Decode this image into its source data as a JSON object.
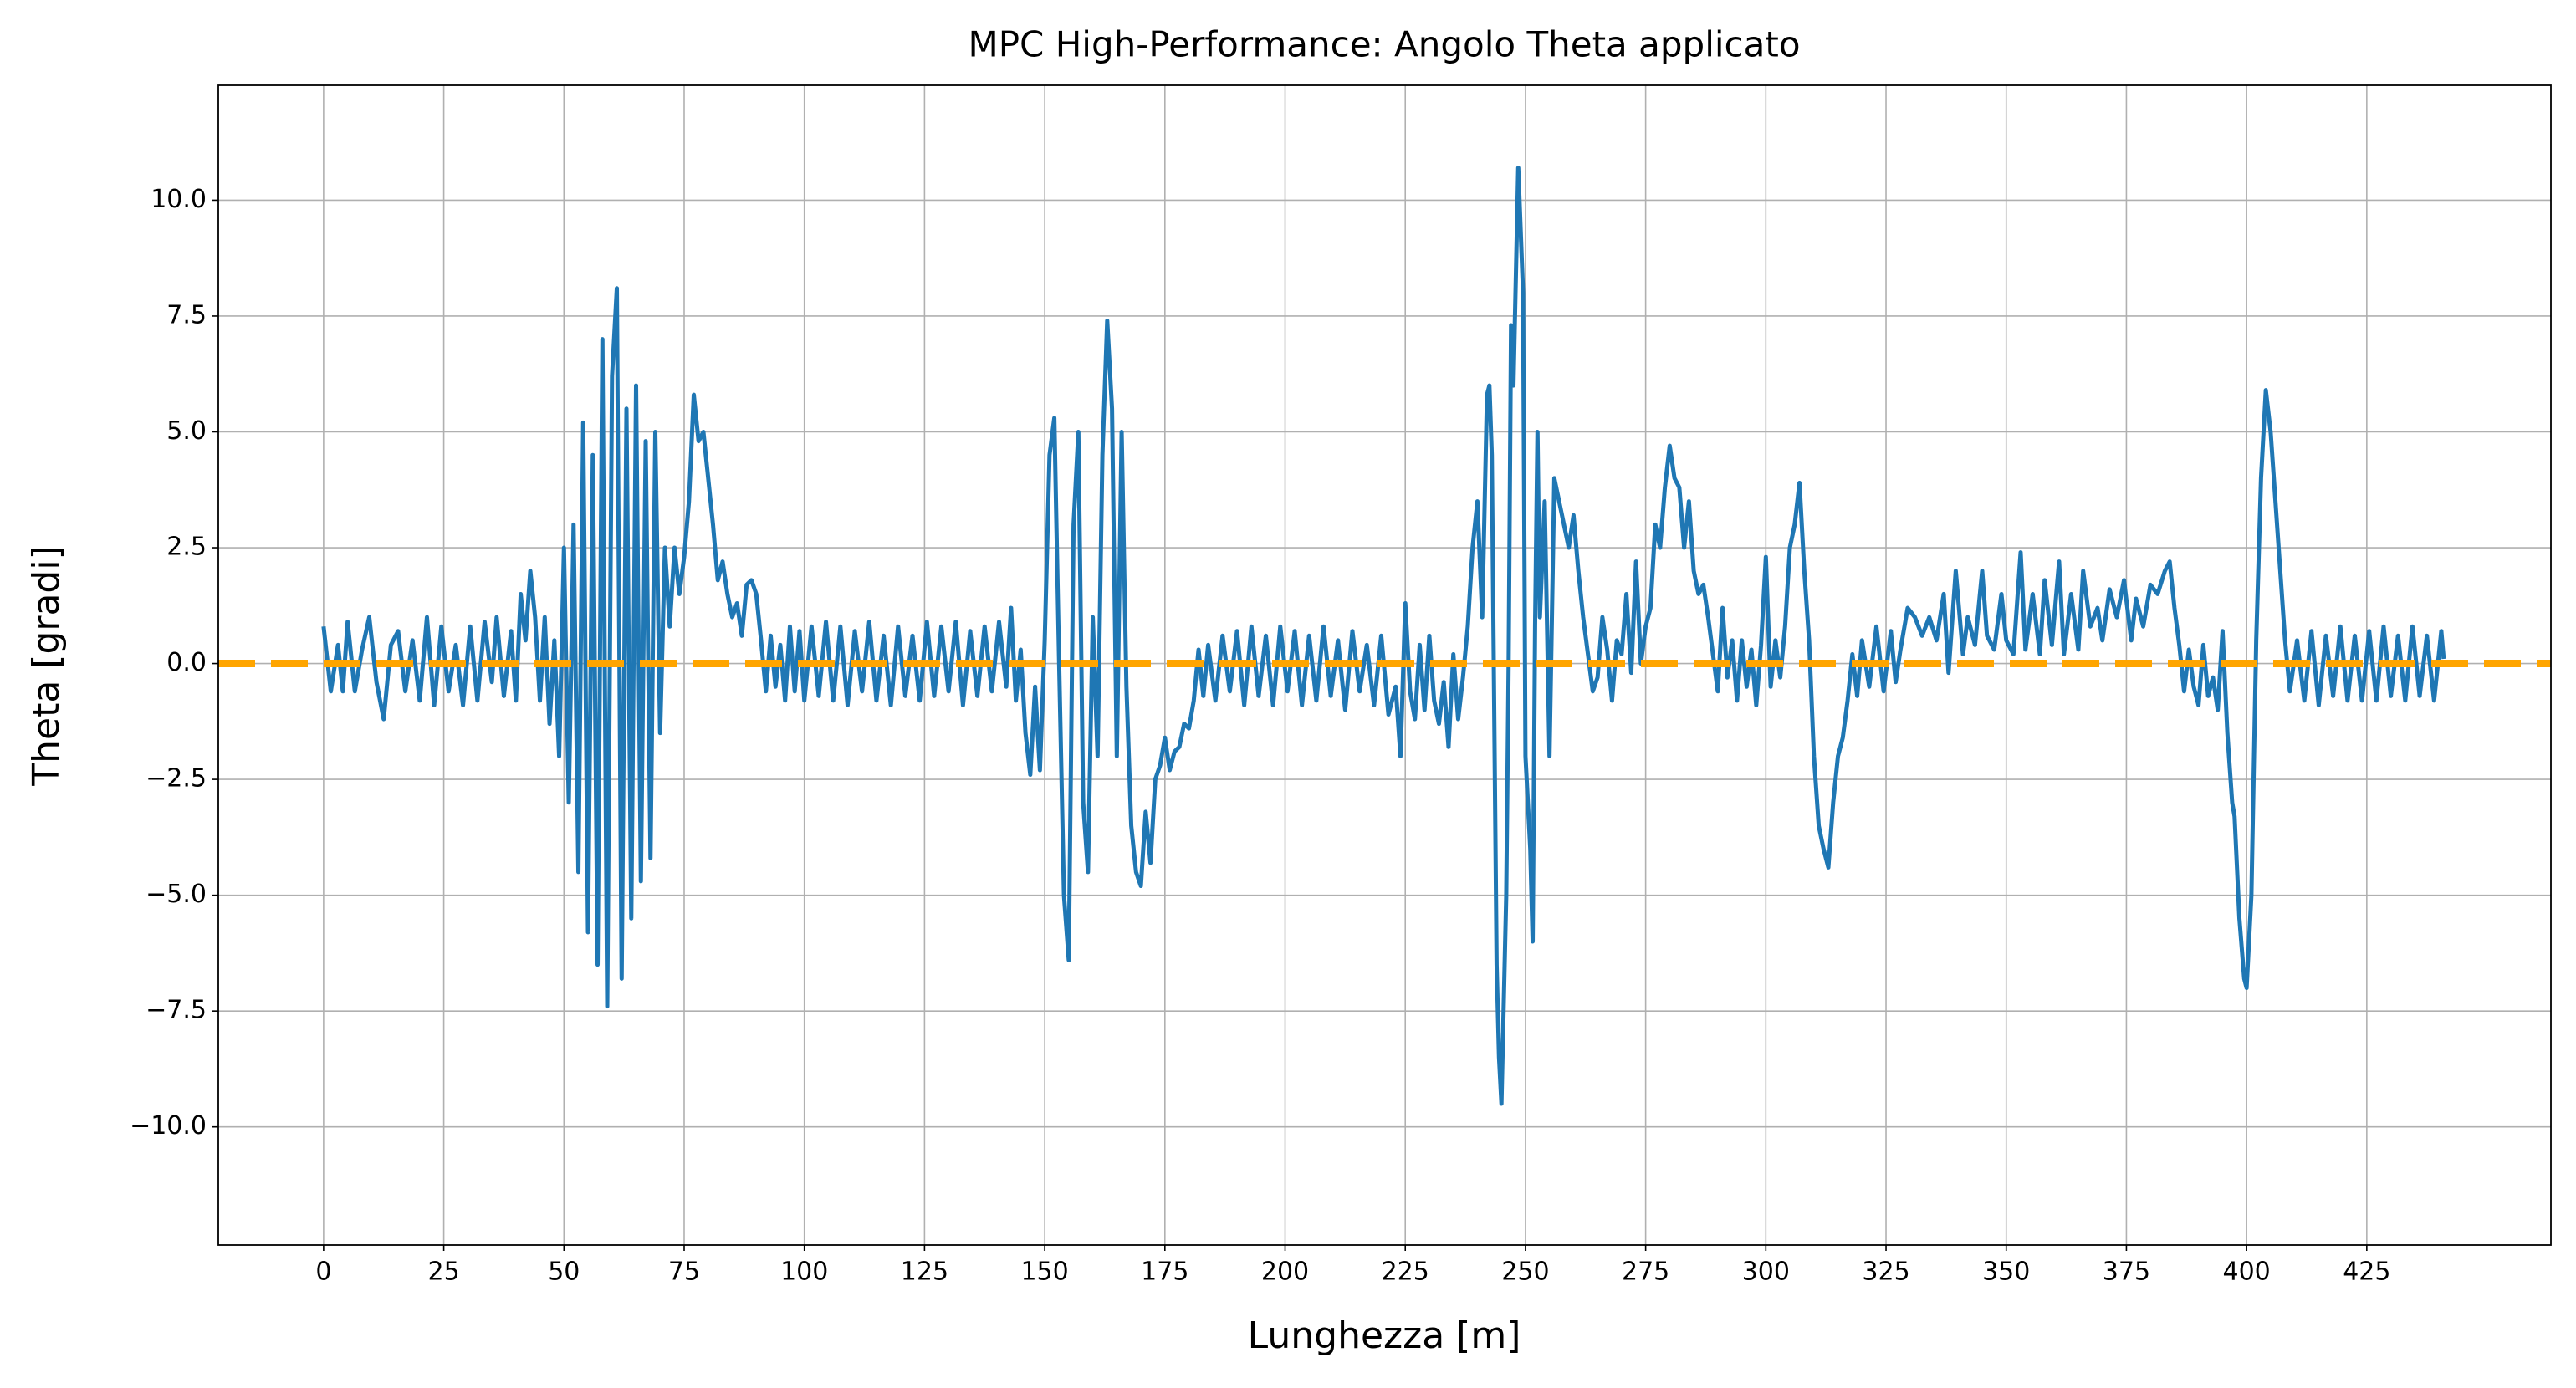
{
  "chart_data": {
    "type": "line",
    "title": "MPC High-Performance: Angolo Theta applicato",
    "x_label": "Lunghezza [m]",
    "y_label": "Theta [gradi]",
    "color": "#1f77b4",
    "x": [
      0,
      1.5,
      3,
      4,
      5,
      6.5,
      8,
      9.5,
      11,
      12.5,
      14,
      15.5,
      17,
      18.5,
      20,
      21.5,
      23,
      24.5,
      26,
      27.5,
      29,
      30.5,
      32,
      33.5,
      35,
      36,
      37.5,
      39,
      40,
      41,
      42,
      43,
      44,
      45,
      46,
      47,
      48,
      49,
      50,
      51,
      52,
      53,
      54,
      55,
      56,
      57,
      58,
      59,
      60,
      61,
      62,
      63,
      64,
      65,
      66,
      67,
      68,
      69,
      70,
      71,
      72,
      73,
      74,
      75,
      76,
      77,
      78,
      79,
      80,
      81,
      82,
      83,
      84,
      85,
      86,
      87,
      88,
      89,
      90,
      91,
      92,
      93,
      94,
      95,
      96,
      97,
      98,
      99,
      100,
      101.5,
      103,
      104.5,
      106,
      107.5,
      109,
      110.5,
      112,
      113.5,
      115,
      116.5,
      118,
      119.5,
      121,
      122.5,
      124,
      125.5,
      127,
      128.5,
      130,
      131.5,
      133,
      134.5,
      136,
      137.5,
      139,
      140.5,
      142,
      143,
      144,
      145,
      146,
      147,
      148,
      149,
      150,
      151,
      152,
      153,
      154,
      155,
      156,
      157,
      158,
      159,
      160,
      161,
      162,
      163,
      164,
      165,
      166,
      167,
      168,
      169,
      170,
      171,
      172,
      173,
      174,
      175,
      176,
      177,
      178,
      179,
      180,
      181,
      182,
      183,
      184,
      185.5,
      187,
      188.5,
      190,
      191.5,
      193,
      194.5,
      196,
      197.5,
      199,
      200.5,
      202,
      203.5,
      205,
      206.5,
      208,
      209.5,
      211,
      212.5,
      214,
      215.5,
      217,
      218.5,
      220,
      221.5,
      223,
      224,
      225,
      226,
      227,
      228,
      229,
      230,
      231,
      232,
      233,
      234,
      235,
      236,
      237,
      238,
      239,
      240,
      241,
      242,
      242.5,
      243,
      243.5,
      244,
      244.5,
      245,
      246,
      246.5,
      247,
      247.5,
      248.5,
      249.5,
      250,
      251,
      251.5,
      252,
      252.5,
      253,
      254,
      255,
      256,
      257,
      258,
      259,
      260,
      261,
      262,
      263,
      264,
      265,
      266,
      267,
      268,
      269,
      270,
      271,
      272,
      273,
      274,
      275,
      276,
      277,
      278,
      279,
      280,
      281,
      282,
      283,
      284,
      285,
      286,
      287,
      288,
      289,
      290,
      291,
      292,
      293,
      294,
      295,
      296,
      297,
      298,
      299,
      300,
      301,
      302,
      303,
      304,
      305,
      306,
      307,
      308,
      309,
      310,
      311,
      312,
      313,
      314,
      315,
      316,
      317,
      318,
      319,
      320,
      321.5,
      323,
      324.5,
      326,
      327,
      328,
      329.5,
      331,
      332.5,
      334,
      335.5,
      337,
      338,
      339.5,
      341,
      342,
      343.5,
      345,
      346,
      347.5,
      349,
      350,
      351.5,
      353,
      354,
      355.5,
      357,
      358,
      359.5,
      361,
      362,
      363.5,
      365,
      366,
      367.5,
      369,
      370,
      371.5,
      373,
      374.5,
      376,
      377,
      378.5,
      380,
      381.5,
      383,
      384,
      385,
      386,
      387,
      388,
      389,
      390,
      391,
      392,
      393,
      394,
      395,
      396,
      397,
      397.5,
      398.5,
      399.5,
      400,
      401,
      402,
      403,
      404,
      405,
      406,
      407,
      408,
      409,
      410.5,
      412,
      413.5,
      415,
      416.5,
      418,
      419.5,
      421,
      422.5,
      424,
      425.5,
      427,
      428.5,
      430,
      431.5,
      433,
      434.5,
      436,
      437.5,
      439,
      440.5,
      441
    ],
    "values": [
      0.8,
      -0.6,
      0.4,
      -0.6,
      0.9,
      -0.6,
      0.3,
      1.0,
      -0.4,
      -1.2,
      0.4,
      0.7,
      -0.6,
      0.5,
      -0.8,
      1.0,
      -0.9,
      0.8,
      -0.6,
      0.4,
      -0.9,
      0.8,
      -0.8,
      0.9,
      -0.4,
      1.0,
      -0.7,
      0.7,
      -0.8,
      1.5,
      0.5,
      2.0,
      1.0,
      -0.8,
      1.0,
      -1.3,
      0.5,
      -2.0,
      2.5,
      -3.0,
      3.0,
      -4.5,
      5.2,
      -5.8,
      4.5,
      -6.5,
      7.0,
      -7.4,
      6.2,
      8.1,
      -6.8,
      5.5,
      -5.5,
      6.0,
      -4.7,
      4.8,
      -4.2,
      5.0,
      -1.5,
      2.5,
      0.8,
      2.5,
      1.5,
      2.3,
      3.5,
      5.8,
      4.8,
      5.0,
      4.0,
      3.0,
      1.8,
      2.2,
      1.5,
      1.0,
      1.3,
      0.6,
      1.7,
      1.8,
      1.5,
      0.5,
      -0.6,
      0.6,
      -0.5,
      0.4,
      -0.8,
      0.8,
      -0.6,
      0.7,
      -0.8,
      0.8,
      -0.7,
      0.9,
      -0.8,
      0.8,
      -0.9,
      0.7,
      -0.6,
      0.9,
      -0.8,
      0.6,
      -0.9,
      0.8,
      -0.7,
      0.6,
      -0.8,
      0.9,
      -0.7,
      0.8,
      -0.6,
      0.9,
      -0.9,
      0.7,
      -0.7,
      0.8,
      -0.6,
      0.9,
      -0.5,
      1.2,
      -0.8,
      0.3,
      -1.5,
      -2.4,
      -0.5,
      -2.3,
      0.5,
      4.5,
      5.3,
      0.0,
      -5.0,
      -6.4,
      3.0,
      5.0,
      -3.0,
      -4.5,
      1.0,
      -2.0,
      4.5,
      7.4,
      5.5,
      -2.0,
      5.0,
      -0.5,
      -3.5,
      -4.5,
      -4.8,
      -3.2,
      -4.3,
      -2.5,
      -2.2,
      -1.6,
      -2.3,
      -1.9,
      -1.8,
      -1.3,
      -1.4,
      -0.8,
      0.3,
      -0.7,
      0.4,
      -0.8,
      0.6,
      -0.6,
      0.7,
      -0.9,
      0.8,
      -0.7,
      0.6,
      -0.9,
      0.8,
      -0.6,
      0.7,
      -0.9,
      0.6,
      -0.8,
      0.8,
      -0.7,
      0.5,
      -1.0,
      0.7,
      -0.6,
      0.4,
      -0.9,
      0.6,
      -1.1,
      -0.5,
      -2.0,
      1.3,
      -0.6,
      -1.2,
      0.4,
      -1.0,
      0.6,
      -0.8,
      -1.3,
      -0.4,
      -1.8,
      0.2,
      -1.2,
      -0.3,
      0.8,
      2.5,
      3.5,
      1.0,
      5.8,
      6.0,
      4.5,
      -1.0,
      -6.5,
      -8.5,
      -9.5,
      -5.0,
      0,
      7.3,
      6.0,
      10.7,
      8.0,
      -2.0,
      -4.0,
      -6.0,
      0.8,
      5.0,
      1.0,
      3.5,
      -2.0,
      4.0,
      3.5,
      3.0,
      2.5,
      3.2,
      2.0,
      1.0,
      0.2,
      -0.6,
      -0.3,
      1.0,
      0.3,
      -0.8,
      0.5,
      0.2,
      1.5,
      -0.2,
      2.2,
      0.0,
      0.8,
      1.2,
      3.0,
      2.5,
      3.8,
      4.7,
      4.0,
      3.8,
      2.5,
      3.5,
      2.0,
      1.5,
      1.7,
      1.0,
      0.2,
      -0.6,
      1.2,
      -0.3,
      0.5,
      -0.8,
      0.5,
      -0.5,
      0.3,
      -0.9,
      0.4,
      2.3,
      -0.5,
      0.5,
      -0.3,
      0.8,
      2.5,
      3.0,
      3.9,
      2.0,
      0.5,
      -2.0,
      -3.5,
      -4.0,
      -4.4,
      -3.0,
      -2.0,
      -1.6,
      -0.8,
      0.2,
      -0.7,
      0.5,
      -0.5,
      0.8,
      -0.6,
      0.7,
      -0.4,
      0.3,
      1.2,
      1.0,
      0.6,
      1.0,
      0.5,
      1.5,
      -0.2,
      2.0,
      0.2,
      1.0,
      0.4,
      2.0,
      0.6,
      0.3,
      1.5,
      0.5,
      0.2,
      2.4,
      0.3,
      1.5,
      0.2,
      1.8,
      0.4,
      2.2,
      0.2,
      1.5,
      0.3,
      2.0,
      0.8,
      1.2,
      0.5,
      1.6,
      1.0,
      1.8,
      0.5,
      1.4,
      0.8,
      1.7,
      1.5,
      2.0,
      2.2,
      1.2,
      0.4,
      -0.6,
      0.3,
      -0.5,
      -0.9,
      0.4,
      -0.7,
      -0.3,
      -1.0,
      0.7,
      -1.5,
      -3.0,
      -3.3,
      -5.5,
      -6.8,
      -7.0,
      -5.0,
      0.5,
      4.0,
      5.9,
      5.0,
      3.5,
      2.0,
      0.5,
      -0.6,
      0.5,
      -0.8,
      0.7,
      -0.9,
      0.6,
      -0.7,
      0.8,
      -0.8,
      0.6,
      -0.8,
      0.7,
      -0.8,
      0.8,
      -0.7,
      0.6,
      -0.8,
      0.8,
      -0.7,
      0.6,
      -0.8,
      0.7,
      0.1
    ],
    "hlines": [
      {
        "y": 0,
        "color": "#ffa500",
        "linestyle": "dashed"
      }
    ],
    "xlim": [
      -21.9,
      463.3
    ],
    "ylim": [
      -12.55,
      12.48
    ],
    "xticks": [
      0,
      25,
      50,
      75,
      100,
      125,
      150,
      175,
      200,
      225,
      250,
      275,
      300,
      325,
      350,
      375,
      400,
      425
    ],
    "yticks": [
      {
        "value": -10,
        "label": "−10.0"
      },
      {
        "value": -7.5,
        "label": "−7.5"
      },
      {
        "value": -5,
        "label": "−5.0"
      },
      {
        "value": -2.5,
        "label": "−2.5"
      },
      {
        "value": 0,
        "label": "0.0"
      },
      {
        "value": 2.5,
        "label": "2.5"
      },
      {
        "value": 5,
        "label": "5.0"
      },
      {
        "value": 7.5,
        "label": "7.5"
      },
      {
        "value": 10,
        "label": "10.0"
      }
    ],
    "grid": true
  }
}
